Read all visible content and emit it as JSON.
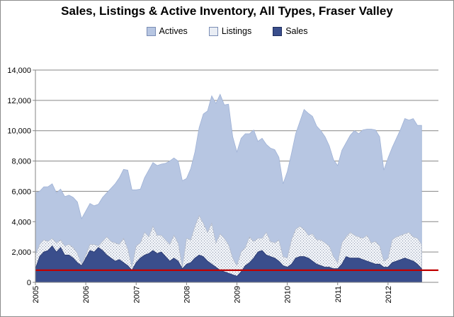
{
  "chart_data": {
    "type": "area",
    "title": "Sales, Listings & Active Inventory, All Types, Fraser Valley",
    "xlabel": "",
    "ylabel": "",
    "ylim": [
      0,
      14000
    ],
    "yticks": [
      "0",
      "2,000",
      "4,000",
      "6,000",
      "8,000",
      "10,000",
      "12,000",
      "14,000"
    ],
    "xticks": [
      "2005",
      "2006",
      "2007",
      "2008",
      "2009",
      "2010",
      "2011",
      "2012"
    ],
    "x_start": 2005,
    "grid": true,
    "legend_position": "top",
    "reference_line": {
      "value": 800,
      "color": "#c00000"
    },
    "series": [
      {
        "name": "Actives",
        "color": "#b7c6e2",
        "values": [
          5900,
          6000,
          6300,
          6300,
          6500,
          5900,
          6150,
          5650,
          5750,
          5600,
          5300,
          4200,
          4700,
          5200,
          5050,
          5150,
          5600,
          5900,
          6200,
          6500,
          6900,
          7450,
          7400,
          6100,
          6100,
          6150,
          6900,
          7400,
          7900,
          7700,
          7800,
          7850,
          8000,
          8200,
          8000,
          6700,
          6850,
          7500,
          8600,
          10200,
          11100,
          11300,
          12300,
          11800,
          12400,
          11700,
          11750,
          9600,
          8600,
          9500,
          9800,
          9800,
          10050,
          9300,
          9500,
          9100,
          8850,
          8750,
          8250,
          6500,
          7300,
          8500,
          9800,
          10600,
          11400,
          11150,
          10950,
          10300,
          10000,
          9600,
          9000,
          8100,
          7700,
          8700,
          9200,
          9700,
          10000,
          9800,
          10050,
          10100,
          10100,
          10050,
          9600,
          7400,
          8200,
          8900,
          9500,
          10100,
          10800,
          10700,
          10800,
          10350,
          10350
        ]
      },
      {
        "name": "Listings",
        "color": "#e9edf4",
        "values": [
          1800,
          2500,
          2800,
          2700,
          2900,
          2600,
          2800,
          2400,
          2500,
          2300,
          1900,
          1200,
          1800,
          2500,
          2500,
          2400,
          2700,
          3000,
          2700,
          2600,
          2500,
          2900,
          2200,
          1000,
          2400,
          2600,
          3300,
          3000,
          3700,
          3100,
          3100,
          2800,
          2500,
          3100,
          2600,
          1000,
          2900,
          2800,
          3700,
          4400,
          3900,
          3300,
          3900,
          2600,
          3200,
          2900,
          2500,
          1600,
          1100,
          2000,
          2300,
          3000,
          2700,
          2900,
          2900,
          3300,
          2700,
          2600,
          2800,
          1700,
          1600,
          2800,
          3500,
          3700,
          3500,
          3100,
          3200,
          2800,
          2800,
          2600,
          2400,
          1700,
          1300,
          2600,
          3000,
          3300,
          3100,
          3000,
          2900,
          3100,
          2600,
          2700,
          2400,
          1400,
          1600,
          2800,
          3000,
          3100,
          3200,
          3300,
          3000,
          2900,
          2500
        ]
      },
      {
        "name": "Sales",
        "color": "#3a4e8c",
        "values": [
          900,
          1700,
          2000,
          2100,
          2400,
          2000,
          2300,
          1800,
          1800,
          1600,
          1300,
          1100,
          1600,
          2100,
          2000,
          2300,
          2100,
          1800,
          1600,
          1400,
          1500,
          1300,
          1100,
          800,
          1300,
          1600,
          1800,
          1900,
          2100,
          1900,
          2000,
          1700,
          1400,
          1600,
          1400,
          900,
          1200,
          1300,
          1600,
          1800,
          1700,
          1400,
          1200,
          1000,
          800,
          700,
          600,
          500,
          400,
          700,
          1100,
          1300,
          1600,
          2000,
          2100,
          1800,
          1700,
          1600,
          1400,
          1100,
          1000,
          1200,
          1600,
          1700,
          1700,
          1600,
          1400,
          1200,
          1100,
          1000,
          1000,
          900,
          900,
          1200,
          1700,
          1600,
          1600,
          1600,
          1500,
          1400,
          1300,
          1200,
          1200,
          1000,
          1000,
          1300,
          1400,
          1500,
          1600,
          1500,
          1400,
          1200,
          900
        ]
      }
    ]
  }
}
